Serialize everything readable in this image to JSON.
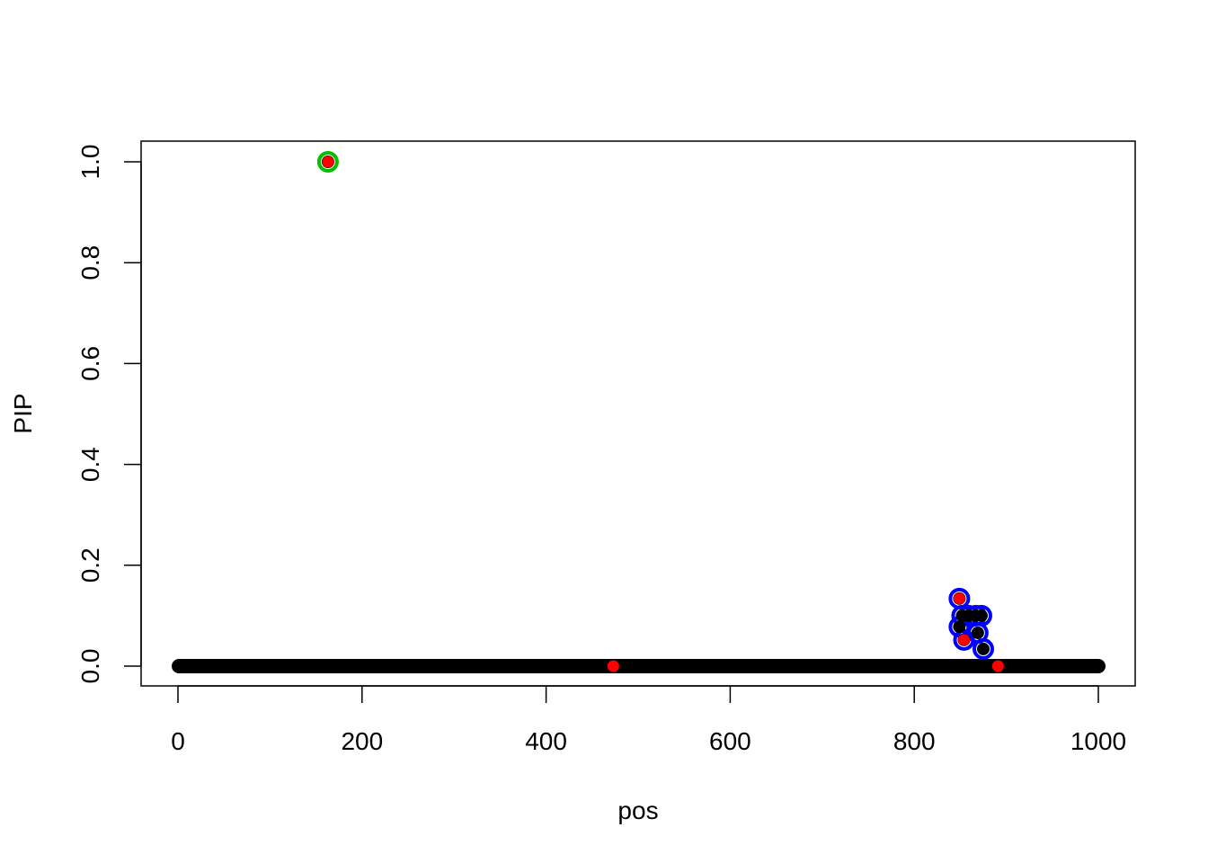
{
  "chart_data": {
    "type": "scatter",
    "title": "",
    "xlabel": "pos",
    "ylabel": "PIP",
    "xlim": [
      0,
      1000
    ],
    "ylim": [
      0,
      1.0
    ],
    "x_ticks": [
      "0",
      "200",
      "400",
      "600",
      "800",
      "1000"
    ],
    "y_ticks": [
      "0.0",
      "0.2",
      "0.4",
      "0.6",
      "0.8",
      "1.0"
    ],
    "grid": false,
    "legend": "none",
    "baseline": {
      "positions_from": 1,
      "positions_to": 1000,
      "pip": 0,
      "color": "#000000"
    },
    "nonzero_points": [
      {
        "x": 163,
        "y": 1.0
      },
      {
        "x": 849,
        "y": 0.134
      },
      {
        "x": 852,
        "y": 0.1
      },
      {
        "x": 859,
        "y": 0.1
      },
      {
        "x": 867,
        "y": 0.1
      },
      {
        "x": 873,
        "y": 0.1
      },
      {
        "x": 849,
        "y": 0.078
      },
      {
        "x": 869,
        "y": 0.066
      },
      {
        "x": 854,
        "y": 0.052
      },
      {
        "x": 875,
        "y": 0.034
      }
    ],
    "credible_sets": [
      {
        "color": "#00C000",
        "positions": [
          163
        ]
      },
      {
        "color": "#0000FF",
        "positions": [
          849,
          852,
          859,
          867,
          873,
          869,
          854,
          875
        ]
      }
    ],
    "true_effects": {
      "color": "#FF0000",
      "positions": [
        163,
        473,
        849,
        854,
        891
      ]
    }
  }
}
